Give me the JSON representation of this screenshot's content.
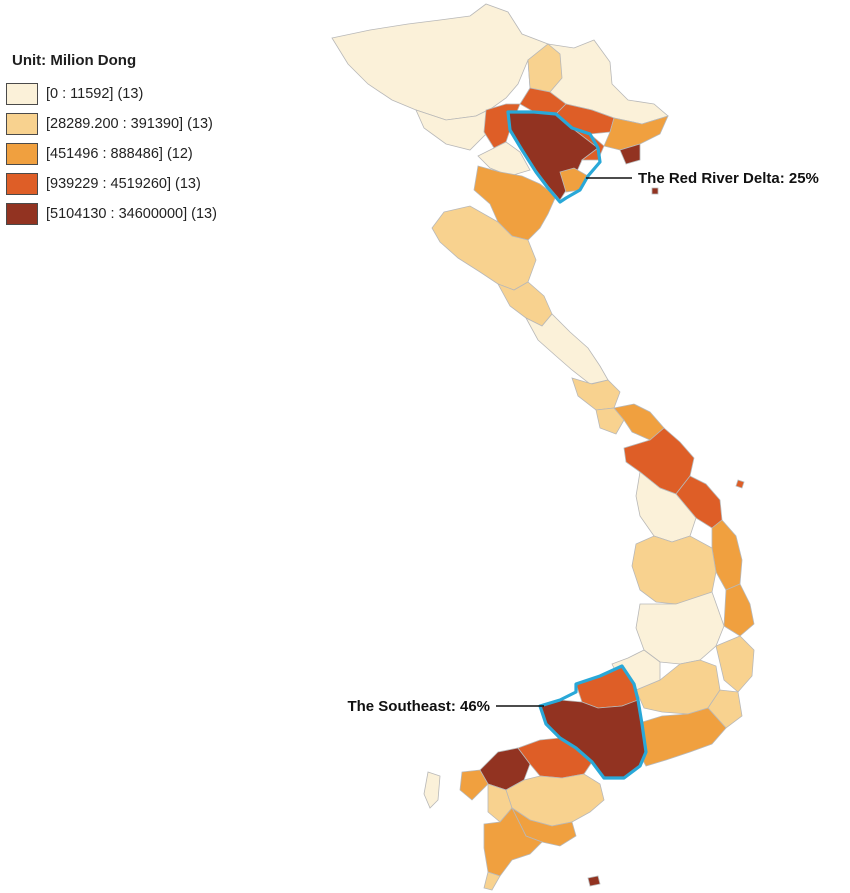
{
  "legend": {
    "title": "Unit: Milion Dong",
    "classes": [
      {
        "label": "[0 : 11592] (13)",
        "color": "#fbf1d9"
      },
      {
        "label": "[28289.200 : 391390] (13)",
        "color": "#f8d28f"
      },
      {
        "label": "[451496 : 888486] (12)",
        "color": "#f0a03f"
      },
      {
        "label": "[939229 : 4519260] (13)",
        "color": "#de5e27"
      },
      {
        "label": "[5104130 : 34600000] (13)",
        "color": "#923321"
      }
    ]
  },
  "callouts": {
    "red_river_delta": "The Red River Delta: 25%",
    "southeast": "The Southeast: 46%"
  },
  "colors": {
    "highlight_outline": "#29a8d8",
    "province_border": "#b8b8b8"
  }
}
